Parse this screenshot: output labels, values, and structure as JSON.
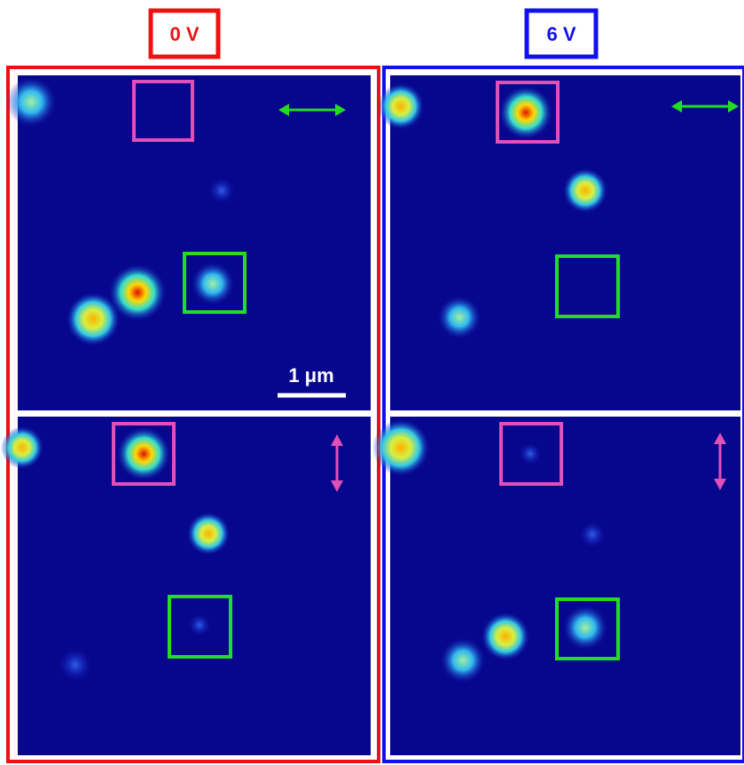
{
  "panels": [
    {
      "label": "0 V"
    },
    {
      "label": "6 V"
    }
  ],
  "scale_bar": "1 μm"
}
